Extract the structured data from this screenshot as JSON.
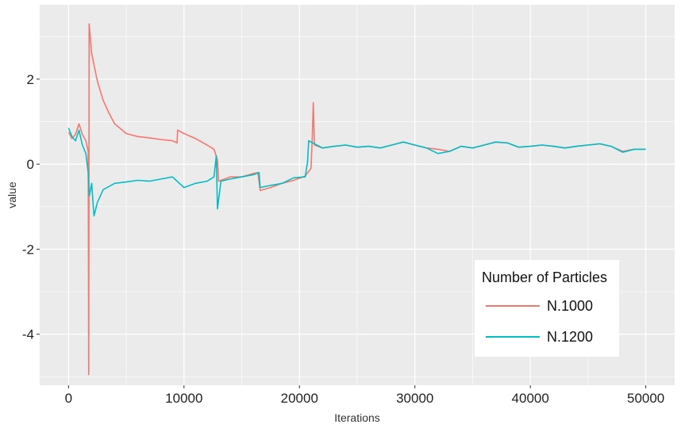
{
  "chart_data": {
    "type": "line",
    "title": "",
    "xlabel": "Iterations",
    "ylabel": "value",
    "xlim": [
      -2500,
      52500
    ],
    "ylim": [
      -5.2,
      3.75
    ],
    "x_ticks": [
      0,
      10000,
      20000,
      30000,
      40000,
      50000
    ],
    "x_tick_labels": [
      "0",
      "10000",
      "20000",
      "30000",
      "40000",
      "50000"
    ],
    "y_ticks": [
      -4,
      -2,
      0,
      2
    ],
    "y_tick_labels": [
      "-4",
      "-2",
      "0",
      "2"
    ],
    "grid": true,
    "panel_background": "#EBEBEB",
    "grid_color": "#FFFFFF",
    "legend": {
      "title": "Number of Particles",
      "position": "bottom-right inside"
    },
    "series": [
      {
        "name": "N.1000",
        "color": "#F8766D",
        "points": [
          [
            0,
            0.75
          ],
          [
            300,
            0.6
          ],
          [
            600,
            0.7
          ],
          [
            900,
            0.95
          ],
          [
            1200,
            0.7
          ],
          [
            1500,
            0.55
          ],
          [
            1700,
            0.3
          ],
          [
            1750,
            -4.95
          ],
          [
            1780,
            3.3
          ],
          [
            2000,
            2.6
          ],
          [
            2500,
            1.95
          ],
          [
            3000,
            1.5
          ],
          [
            3500,
            1.2
          ],
          [
            4000,
            0.95
          ],
          [
            5000,
            0.72
          ],
          [
            6000,
            0.65
          ],
          [
            7000,
            0.62
          ],
          [
            8000,
            0.58
          ],
          [
            9000,
            0.55
          ],
          [
            9400,
            0.5
          ],
          [
            9450,
            0.8
          ],
          [
            10000,
            0.72
          ],
          [
            11000,
            0.6
          ],
          [
            12000,
            0.45
          ],
          [
            12600,
            0.35
          ],
          [
            12900,
            0.1
          ],
          [
            13000,
            -0.4
          ],
          [
            14000,
            -0.3
          ],
          [
            15000,
            -0.3
          ],
          [
            16000,
            -0.22
          ],
          [
            16400,
            -0.2
          ],
          [
            16600,
            -0.62
          ],
          [
            17500,
            -0.55
          ],
          [
            18500,
            -0.45
          ],
          [
            19500,
            -0.38
          ],
          [
            20500,
            -0.28
          ],
          [
            21000,
            -0.1
          ],
          [
            21100,
            0.55
          ],
          [
            21200,
            1.45
          ],
          [
            21300,
            0.45
          ],
          [
            22000,
            0.38
          ],
          [
            23000,
            0.42
          ],
          [
            24000,
            0.45
          ],
          [
            25000,
            0.4
          ],
          [
            26000,
            0.42
          ],
          [
            27000,
            0.38
          ],
          [
            28000,
            0.45
          ],
          [
            29000,
            0.52
          ],
          [
            30000,
            0.45
          ],
          [
            31000,
            0.38
          ],
          [
            32000,
            0.35
          ],
          [
            33000,
            0.3
          ],
          [
            34000,
            0.42
          ],
          [
            35000,
            0.38
          ],
          [
            36000,
            0.45
          ],
          [
            37000,
            0.52
          ],
          [
            38000,
            0.5
          ],
          [
            39000,
            0.4
          ],
          [
            40000,
            0.42
          ],
          [
            41000,
            0.45
          ],
          [
            42000,
            0.42
          ],
          [
            43000,
            0.38
          ],
          [
            44000,
            0.42
          ],
          [
            45000,
            0.45
          ],
          [
            46000,
            0.48
          ],
          [
            47000,
            0.42
          ],
          [
            48000,
            0.3
          ],
          [
            49000,
            0.35
          ],
          [
            50000,
            0.35
          ]
        ]
      },
      {
        "name": "N.1200",
        "color": "#00BFC4",
        "points": [
          [
            0,
            0.85
          ],
          [
            300,
            0.65
          ],
          [
            600,
            0.55
          ],
          [
            900,
            0.8
          ],
          [
            1200,
            0.45
          ],
          [
            1500,
            0.25
          ],
          [
            1700,
            -0.2
          ],
          [
            1800,
            -0.75
          ],
          [
            2000,
            -0.45
          ],
          [
            2200,
            -1.22
          ],
          [
            2500,
            -0.9
          ],
          [
            3000,
            -0.6
          ],
          [
            4000,
            -0.45
          ],
          [
            5000,
            -0.42
          ],
          [
            6000,
            -0.38
          ],
          [
            7000,
            -0.4
          ],
          [
            8000,
            -0.35
          ],
          [
            9000,
            -0.3
          ],
          [
            10000,
            -0.55
          ],
          [
            11000,
            -0.45
          ],
          [
            12000,
            -0.4
          ],
          [
            12600,
            -0.3
          ],
          [
            12800,
            0.2
          ],
          [
            12900,
            -1.05
          ],
          [
            13200,
            -0.4
          ],
          [
            14000,
            -0.35
          ],
          [
            15000,
            -0.3
          ],
          [
            16000,
            -0.25
          ],
          [
            16500,
            -0.2
          ],
          [
            16600,
            -0.55
          ],
          [
            17500,
            -0.5
          ],
          [
            18500,
            -0.45
          ],
          [
            19500,
            -0.32
          ],
          [
            20500,
            -0.3
          ],
          [
            20700,
            0.05
          ],
          [
            20800,
            0.55
          ],
          [
            21500,
            0.45
          ],
          [
            22000,
            0.38
          ],
          [
            23000,
            0.42
          ],
          [
            24000,
            0.45
          ],
          [
            25000,
            0.4
          ],
          [
            26000,
            0.42
          ],
          [
            27000,
            0.38
          ],
          [
            28000,
            0.45
          ],
          [
            29000,
            0.52
          ],
          [
            30000,
            0.45
          ],
          [
            31000,
            0.38
          ],
          [
            32000,
            0.25
          ],
          [
            33000,
            0.3
          ],
          [
            34000,
            0.42
          ],
          [
            35000,
            0.38
          ],
          [
            36000,
            0.45
          ],
          [
            37000,
            0.52
          ],
          [
            38000,
            0.5
          ],
          [
            39000,
            0.4
          ],
          [
            40000,
            0.42
          ],
          [
            41000,
            0.45
          ],
          [
            42000,
            0.42
          ],
          [
            43000,
            0.38
          ],
          [
            44000,
            0.42
          ],
          [
            45000,
            0.45
          ],
          [
            46000,
            0.48
          ],
          [
            47000,
            0.42
          ],
          [
            48000,
            0.28
          ],
          [
            49000,
            0.35
          ],
          [
            50000,
            0.35
          ]
        ]
      }
    ]
  }
}
